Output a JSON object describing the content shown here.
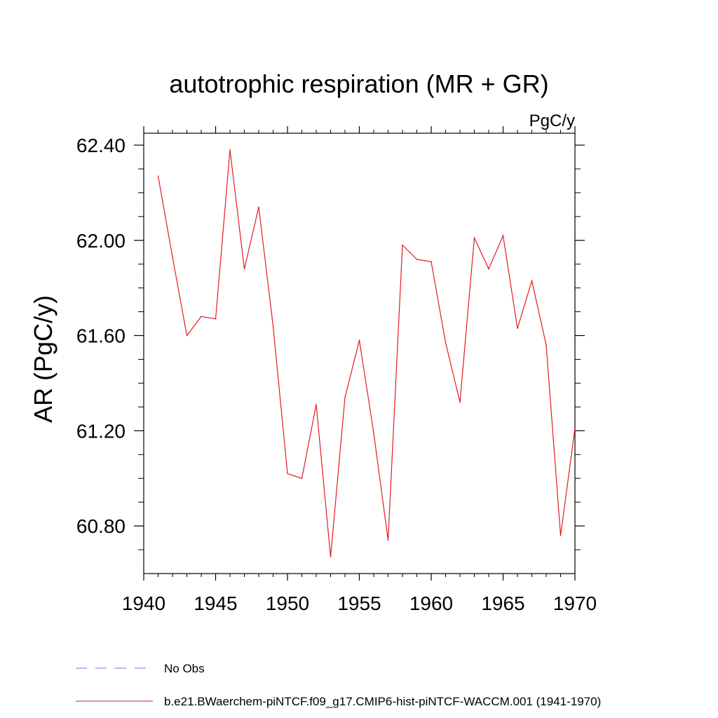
{
  "chart_data": {
    "type": "line",
    "title": "autotrophic respiration (MR + GR)",
    "units_label": "PgC/y",
    "ylabel": "AR  (PgC/y)",
    "xlabel": "",
    "xlim": [
      1940,
      1970
    ],
    "ylim": [
      60.6,
      62.45
    ],
    "x_ticks": [
      1940,
      1945,
      1950,
      1955,
      1960,
      1965,
      1970
    ],
    "x_tick_labels": [
      "1940",
      "1945",
      "1950",
      "1955",
      "1960",
      "1965",
      "1970"
    ],
    "y_ticks": [
      60.8,
      61.2,
      61.6,
      62.0,
      62.4
    ],
    "y_tick_labels": [
      "60.80",
      "61.20",
      "61.60",
      "62.00",
      "62.40"
    ],
    "grid": false,
    "series": [
      {
        "name": "b.e21.BWaerchem-piNTCF.f09_g17.CMIP6-hist-piNTCF-WACCM.001 (1941-1970)",
        "color": "#e41a1c",
        "x": [
          1941,
          1942,
          1943,
          1944,
          1945,
          1946,
          1947,
          1948,
          1949,
          1950,
          1951,
          1952,
          1953,
          1954,
          1955,
          1956,
          1957,
          1958,
          1959,
          1960,
          1961,
          1962,
          1963,
          1964,
          1965,
          1966,
          1967,
          1968,
          1969,
          1970
        ],
        "values": [
          62.27,
          61.93,
          61.6,
          61.68,
          61.67,
          62.38,
          61.88,
          62.14,
          61.64,
          61.02,
          61.0,
          61.31,
          60.67,
          61.34,
          61.58,
          61.19,
          60.74,
          61.98,
          61.92,
          61.91,
          61.57,
          61.32,
          62.01,
          61.88,
          62.02,
          61.63,
          61.83,
          61.56,
          60.76,
          61.21
        ]
      }
    ],
    "legend": {
      "placement": "bottom-left",
      "entries": [
        {
          "label": "No Obs",
          "style": "dashed",
          "color": "#7b68ee"
        },
        {
          "label": "b.e21.BWaerchem-piNTCF.f09_g17.CMIP6-hist-piNTCF-WACCM.001 (1941-1970)",
          "style": "solid",
          "color": "#e41a1c"
        }
      ]
    }
  }
}
